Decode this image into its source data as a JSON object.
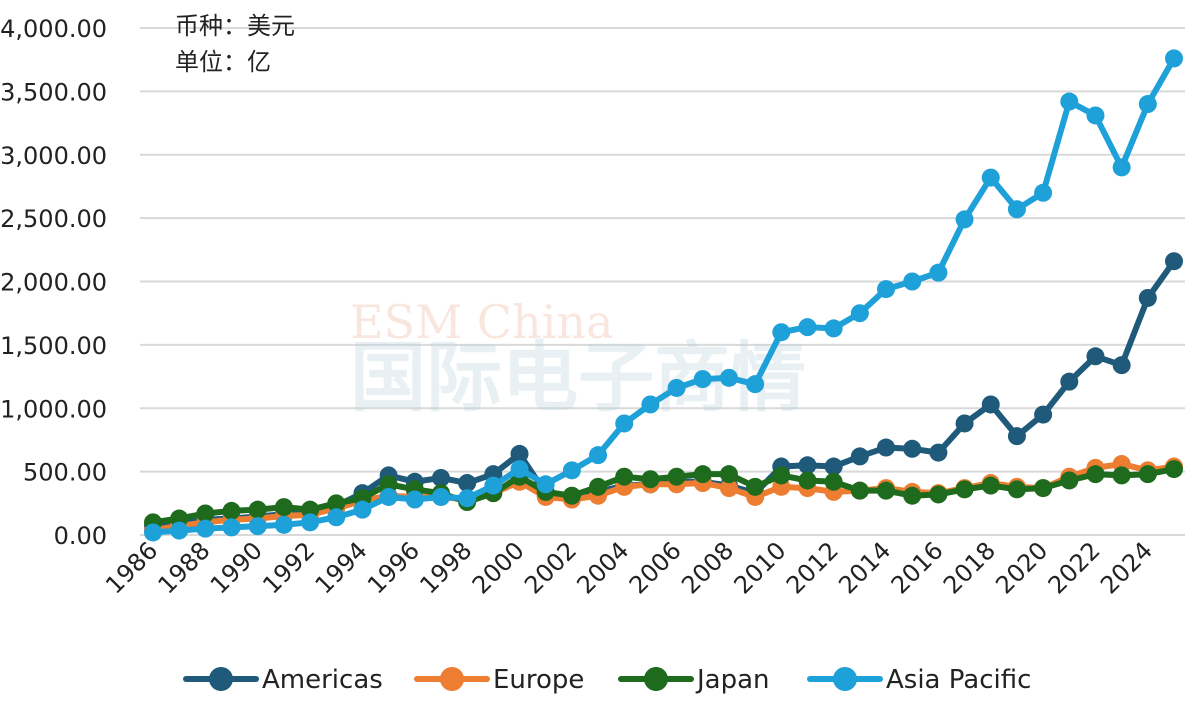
{
  "chart_data": {
    "type": "line",
    "annotations": [
      "币种：美元",
      "单位：亿"
    ],
    "watermark": [
      "ESM China",
      "国际电子商情"
    ],
    "ylim": [
      0,
      4000
    ],
    "ytick_labels": [
      "0.00",
      "500.00",
      "1,000.00",
      "1,500.00",
      "2,000.00",
      "2,500.00",
      "3,000.00",
      "3,500.00",
      "4,000.00"
    ],
    "ytick_values": [
      0,
      500,
      1000,
      1500,
      2000,
      2500,
      3000,
      3500,
      4000
    ],
    "grid": "horizontal",
    "legend_position": "bottom",
    "x": [
      1986,
      1987,
      1988,
      1989,
      1990,
      1991,
      1992,
      1993,
      1994,
      1995,
      1996,
      1997,
      1998,
      1999,
      2000,
      2001,
      2002,
      2003,
      2004,
      2005,
      2006,
      2007,
      2008,
      2009,
      2010,
      2011,
      2012,
      2013,
      2014,
      2015,
      2016,
      2017,
      2018,
      2019,
      2020,
      2021,
      2022,
      2023,
      2024,
      2025
    ],
    "xtick_labels": [
      "1986",
      "1988",
      "1990",
      "1992",
      "1994",
      "1996",
      "1998",
      "2000",
      "2002",
      "2004",
      "2006",
      "2008",
      "2010",
      "2012",
      "2014",
      "2016",
      "2018",
      "2020",
      "2022",
      "2024"
    ],
    "series": [
      {
        "name": "Americas",
        "color": "#1f5a7a",
        "values": [
          70,
          90,
          120,
          130,
          145,
          165,
          170,
          230,
          330,
          470,
          420,
          450,
          410,
          480,
          640,
          330,
          300,
          340,
          390,
          400,
          420,
          420,
          390,
          330,
          540,
          550,
          540,
          620,
          690,
          680,
          650,
          880,
          1030,
          780,
          950,
          1210,
          1410,
          1340,
          1870,
          2160
        ]
      },
      {
        "name": "Europe",
        "color": "#ed7d31",
        "values": [
          40,
          70,
          100,
          120,
          130,
          150,
          160,
          210,
          270,
          310,
          300,
          300,
          280,
          330,
          420,
          300,
          280,
          310,
          380,
          400,
          400,
          410,
          370,
          300,
          380,
          370,
          340,
          350,
          370,
          340,
          330,
          370,
          410,
          380,
          370,
          460,
          530,
          560,
          510,
          540
        ]
      },
      {
        "name": "Japan",
        "color": "#1e6b1e",
        "values": [
          100,
          130,
          170,
          190,
          200,
          220,
          200,
          250,
          290,
          400,
          360,
          330,
          260,
          330,
          460,
          340,
          310,
          380,
          460,
          440,
          460,
          480,
          480,
          380,
          470,
          430,
          420,
          350,
          350,
          310,
          320,
          360,
          390,
          360,
          370,
          430,
          480,
          470,
          480,
          520
        ]
      },
      {
        "name": "Asia Pacific",
        "color": "#1ea0d8",
        "values": [
          20,
          35,
          50,
          60,
          70,
          80,
          100,
          140,
          200,
          300,
          280,
          300,
          290,
          390,
          520,
          400,
          510,
          630,
          880,
          1030,
          1160,
          1230,
          1240,
          1190,
          1600,
          1640,
          1630,
          1750,
          1940,
          2000,
          2070,
          2490,
          2820,
          2570,
          2700,
          3420,
          3310,
          2900,
          3400,
          3760
        ]
      }
    ]
  }
}
